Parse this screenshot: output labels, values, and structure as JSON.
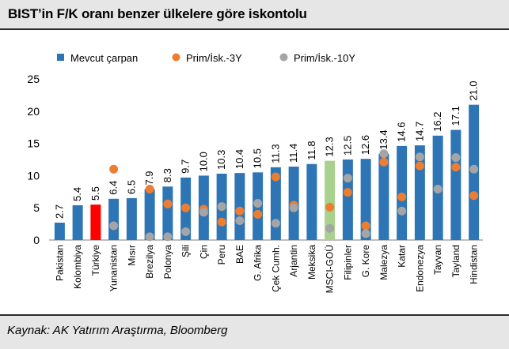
{
  "header": {
    "title": "BIST’in F/K oranı benzer ülkelere göre iskontolu"
  },
  "footer": {
    "source": "Kaynak: AK Yatırım Araştırma, Bloomberg"
  },
  "chart_data": {
    "type": "bar",
    "title": "BIST’in F/K oranı benzer ülkelere göre iskontolu",
    "xlabel": "",
    "ylabel": "",
    "ylim": [
      0,
      25
    ],
    "yticks": [
      0,
      5,
      10,
      15,
      20,
      25
    ],
    "grid": false,
    "legend_position": "top",
    "categories": [
      "Pakistan",
      "Kolombiya",
      "Türkiye",
      "Yunanistan",
      "Mısır",
      "Brezilya",
      "Polonya",
      "Şili",
      "Çin",
      "Peru",
      "BAE",
      "G. Afrika",
      "Çek Cumh.",
      "Arjantin",
      "Meksika",
      "MSCI-GOÜ",
      "Filipinler",
      "G. Kore",
      "Malezya",
      "Katar",
      "Endonezya",
      "Tayvan",
      "Tayland",
      "Hindistan"
    ],
    "series": [
      {
        "name": "Mevcut çarpan",
        "kind": "bar",
        "color": "#2e75b6",
        "values": [
          2.7,
          5.4,
          5.5,
          6.4,
          6.5,
          7.9,
          8.3,
          9.7,
          10.0,
          10.3,
          10.4,
          10.5,
          11.3,
          11.4,
          11.8,
          12.3,
          12.5,
          12.6,
          13.4,
          14.6,
          14.7,
          16.2,
          17.1,
          21.0
        ],
        "labels": [
          "2.7",
          "5.4",
          "5.5",
          "6.4",
          "6.5",
          "7.9",
          "8.3",
          "9.7",
          "10.0",
          "10.3",
          "10.4",
          "10.5",
          "11.3",
          "11.4",
          "11.8",
          "12.3",
          "12.5",
          "12.6",
          "13.4",
          "14.6",
          "14.7",
          "16.2",
          "17.1",
          "21.0"
        ]
      },
      {
        "name": "Prim/İsk.-3Y",
        "kind": "dot",
        "color": "#ed7d31",
        "values": [
          null,
          null,
          null,
          11.0,
          null,
          7.9,
          5.6,
          5.0,
          4.8,
          2.8,
          4.5,
          4.0,
          9.8,
          5.4,
          null,
          5.1,
          7.4,
          2.2,
          12.1,
          6.7,
          11.5,
          null,
          11.3,
          6.9
        ]
      },
      {
        "name": "Prim/İsk.-10Y",
        "kind": "dot",
        "color": "#a5a5a5",
        "values": [
          null,
          null,
          null,
          2.2,
          null,
          0.5,
          0.5,
          1.3,
          4.3,
          5.2,
          3.0,
          5.7,
          2.6,
          5.0,
          null,
          1.8,
          9.6,
          1.0,
          13.4,
          4.5,
          12.9,
          7.9,
          12.8,
          11.0
        ]
      }
    ],
    "highlight": {
      "Türkiye": "#ff0000",
      "MSCI-GOÜ": "#a9d18e"
    }
  }
}
